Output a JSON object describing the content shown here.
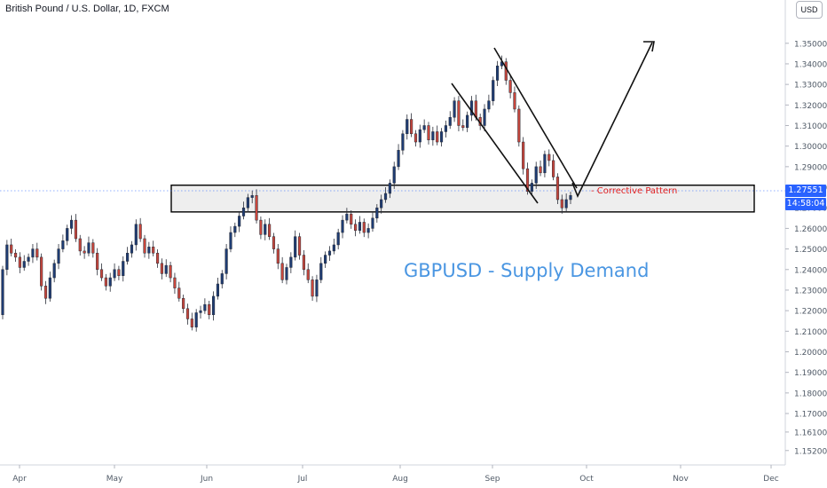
{
  "header": {
    "symbol_title": "British Pound / U.S. Dollar, 1D, FXCM",
    "currency_button": "USD"
  },
  "overlays": {
    "headline": "GBPUSD - Supply Demand",
    "annotation": "- Corrective Pattern",
    "last_price": "1.27551",
    "countdown": "14:58:04"
  },
  "colors": {
    "up_candle": "#1e3c73",
    "down_candle": "#c8463c",
    "zone_fill": "#ebebeb",
    "headline": "#4a96e2",
    "annotation": "#e01e1e",
    "price_tag": "#2962ff",
    "axis_text": "#4f5966"
  },
  "chart_data": {
    "type": "candlestick",
    "title": "British Pound / U.S. Dollar, 1D, FXCM",
    "ylim": [
      1.145,
      1.365
    ],
    "grid": false,
    "y_ticks": [
      "1.35000",
      "1.34000",
      "1.33000",
      "1.32000",
      "1.31000",
      "1.30000",
      "1.29000",
      "1.28000",
      "1.27000",
      "1.26000",
      "1.25000",
      "1.24000",
      "1.23000",
      "1.22000",
      "1.21000",
      "1.20000",
      "1.19000",
      "1.18000",
      "1.17000",
      "1.16100",
      "1.15200"
    ],
    "x_ticks": [
      "Apr",
      "May",
      "Jun",
      "Jul",
      "Aug",
      "Sep",
      "Oct",
      "Nov",
      "Dec"
    ],
    "candles": [
      [
        1.218,
        1.24
      ],
      [
        1.24,
        1.252
      ],
      [
        1.252,
        1.248
      ],
      [
        1.248,
        1.246
      ],
      [
        1.246,
        1.241
      ],
      [
        1.241,
        1.244
      ],
      [
        1.244,
        1.246
      ],
      [
        1.246,
        1.25
      ],
      [
        1.25,
        1.246
      ],
      [
        1.246,
        1.232
      ],
      [
        1.232,
        1.226
      ],
      [
        1.226,
        1.236
      ],
      [
        1.236,
        1.243
      ],
      [
        1.243,
        1.25
      ],
      [
        1.25,
        1.254
      ],
      [
        1.254,
        1.26
      ],
      [
        1.26,
        1.264
      ],
      [
        1.264,
        1.255
      ],
      [
        1.255,
        1.249
      ],
      [
        1.249,
        1.248
      ],
      [
        1.248,
        1.253
      ],
      [
        1.253,
        1.248
      ],
      [
        1.248,
        1.24
      ],
      [
        1.24,
        1.236
      ],
      [
        1.236,
        1.232
      ],
      [
        1.232,
        1.236
      ],
      [
        1.236,
        1.24
      ],
      [
        1.24,
        1.237
      ],
      [
        1.237,
        1.244
      ],
      [
        1.244,
        1.248
      ],
      [
        1.248,
        1.252
      ],
      [
        1.252,
        1.262
      ],
      [
        1.262,
        1.255
      ],
      [
        1.255,
        1.248
      ],
      [
        1.248,
        1.251
      ],
      [
        1.251,
        1.248
      ],
      [
        1.248,
        1.243
      ],
      [
        1.243,
        1.238
      ],
      [
        1.238,
        1.242
      ],
      [
        1.242,
        1.236
      ],
      [
        1.236,
        1.231
      ],
      [
        1.231,
        1.226
      ],
      [
        1.226,
        1.221
      ],
      [
        1.221,
        1.216
      ],
      [
        1.216,
        1.212
      ],
      [
        1.212,
        1.219
      ],
      [
        1.219,
        1.22
      ],
      [
        1.22,
        1.223
      ],
      [
        1.223,
        1.218
      ],
      [
        1.218,
        1.227
      ],
      [
        1.227,
        1.233
      ],
      [
        1.233,
        1.238
      ],
      [
        1.238,
        1.25
      ],
      [
        1.25,
        1.258
      ],
      [
        1.258,
        1.261
      ],
      [
        1.261,
        1.266
      ],
      [
        1.266,
        1.27
      ],
      [
        1.27,
        1.275
      ],
      [
        1.275,
        1.276
      ],
      [
        1.276,
        1.264
      ],
      [
        1.264,
        1.257
      ],
      [
        1.257,
        1.262
      ],
      [
        1.262,
        1.256
      ],
      [
        1.256,
        1.25
      ],
      [
        1.25,
        1.243
      ],
      [
        1.243,
        1.235
      ],
      [
        1.235,
        1.241
      ],
      [
        1.241,
        1.246
      ],
      [
        1.246,
        1.256
      ],
      [
        1.256,
        1.247
      ],
      [
        1.247,
        1.24
      ],
      [
        1.24,
        1.235
      ],
      [
        1.235,
        1.227
      ],
      [
        1.227,
        1.235
      ],
      [
        1.235,
        1.243
      ],
      [
        1.243,
        1.247
      ],
      [
        1.247,
        1.249
      ],
      [
        1.249,
        1.252
      ],
      [
        1.252,
        1.258
      ],
      [
        1.258,
        1.264
      ],
      [
        1.264,
        1.267
      ],
      [
        1.267,
        1.262
      ],
      [
        1.262,
        1.259
      ],
      [
        1.259,
        1.263
      ],
      [
        1.263,
        1.258
      ],
      [
        1.258,
        1.26
      ],
      [
        1.26,
        1.265
      ],
      [
        1.265,
        1.27
      ],
      [
        1.27,
        1.274
      ],
      [
        1.274,
        1.277
      ],
      [
        1.277,
        1.282
      ],
      [
        1.282,
        1.29
      ],
      [
        1.29,
        1.298
      ],
      [
        1.298,
        1.306
      ],
      [
        1.306,
        1.313
      ],
      [
        1.313,
        1.306
      ],
      [
        1.306,
        1.302
      ],
      [
        1.302,
        1.308
      ],
      [
        1.308,
        1.31
      ],
      [
        1.31,
        1.303
      ],
      [
        1.303,
        1.307
      ],
      [
        1.307,
        1.302
      ],
      [
        1.302,
        1.307
      ],
      [
        1.307,
        1.31
      ],
      [
        1.31,
        1.314
      ],
      [
        1.314,
        1.322
      ],
      [
        1.322,
        1.31
      ],
      [
        1.31,
        1.309
      ],
      [
        1.309,
        1.315
      ],
      [
        1.315,
        1.322
      ],
      [
        1.322,
        1.314
      ],
      [
        1.314,
        1.31
      ],
      [
        1.31,
        1.318
      ],
      [
        1.318,
        1.322
      ],
      [
        1.322,
        1.332
      ],
      [
        1.332,
        1.339
      ],
      [
        1.339,
        1.341
      ],
      [
        1.341,
        1.332
      ],
      [
        1.332,
        1.326
      ],
      [
        1.326,
        1.318
      ],
      [
        1.318,
        1.302
      ],
      [
        1.302,
        1.289
      ],
      [
        1.289,
        1.278
      ],
      [
        1.278,
        1.282
      ],
      [
        1.282,
        1.29
      ],
      [
        1.29,
        1.287
      ],
      [
        1.287,
        1.296
      ],
      [
        1.296,
        1.293
      ],
      [
        1.293,
        1.285
      ],
      [
        1.285,
        1.274
      ],
      [
        1.274,
        1.27
      ],
      [
        1.27,
        1.274
      ],
      [
        1.274,
        1.276
      ]
    ],
    "supply_demand_zone": {
      "from": 1.268,
      "to": 1.281
    },
    "current_price": 1.27551
  }
}
